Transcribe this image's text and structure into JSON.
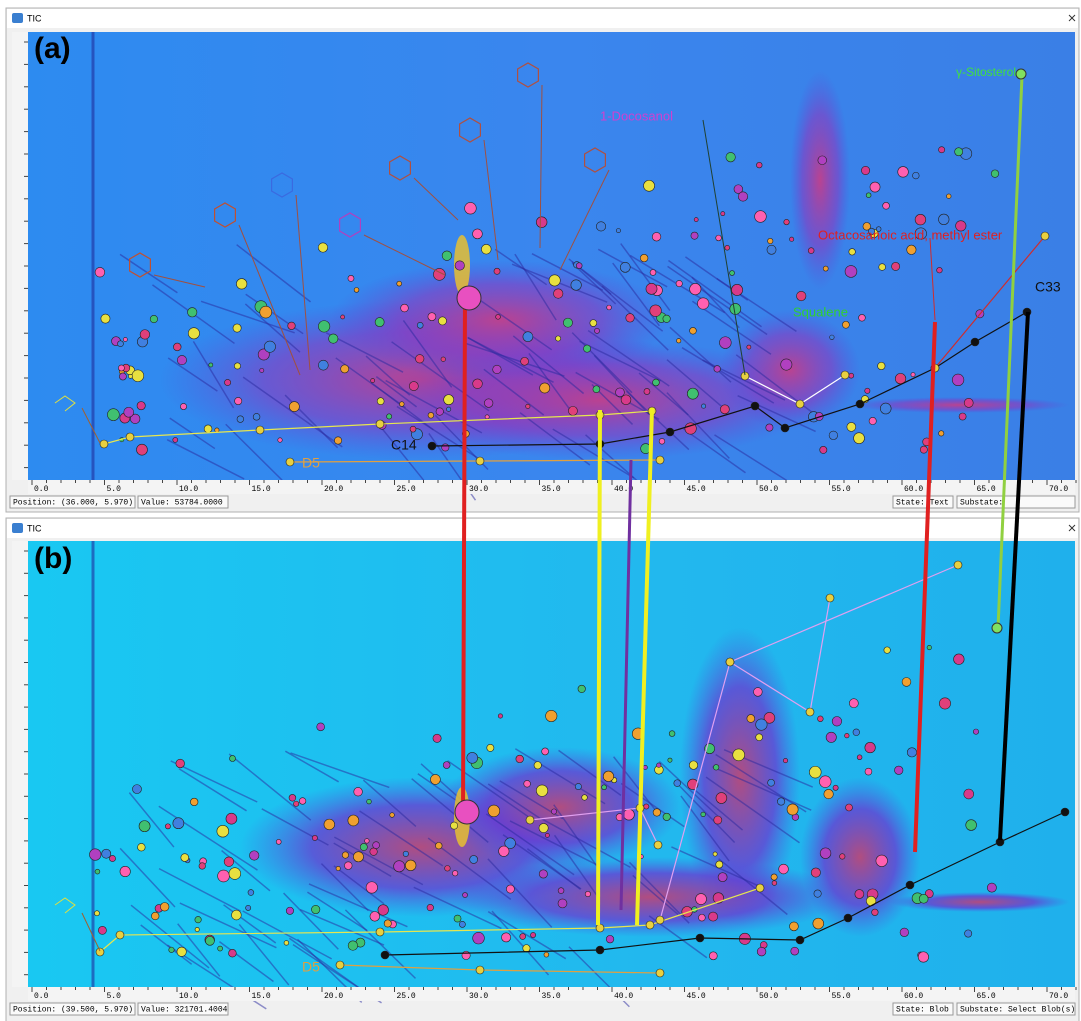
{
  "panels": [
    {
      "label": "(a)",
      "window_title": "TIC",
      "status": {
        "position": "Position: (36.000, 5.970)",
        "value": "Value: 53784.0000",
        "state": "State: Text",
        "substate": "Substate:"
      },
      "annotations": [
        "1-Docosanol",
        "γ-Sitosterol",
        "Octacosanoic acid, methyl ester",
        "Squalene",
        "C33",
        "C14",
        "D5"
      ]
    },
    {
      "label": "(b)",
      "window_title": "TIC",
      "status": {
        "position": "Position: (39.500, 5.970)",
        "value": "Value: 321701.4004",
        "state": "State: Blob",
        "substate": "Substate: Select Blob(s)"
      },
      "annotations": [
        "D5"
      ]
    }
  ],
  "x_axis_labels": [
    "0.0",
    "5.0",
    "10.0",
    "15.0",
    "20.0",
    "25.0",
    "30.0",
    "35.0",
    "40.0",
    "45.0",
    "50.0",
    "55.0",
    "60.0",
    "65.0",
    "70.0"
  ]
}
